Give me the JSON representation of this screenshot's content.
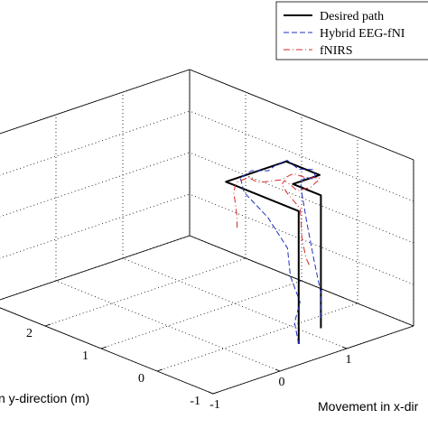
{
  "chart_data": {
    "type": "line",
    "projection": "3d",
    "xlabel": "Movement in x-dir",
    "ylabel": "n y-direction (m)",
    "x_ticks": [
      "-1",
      "0",
      "1"
    ],
    "y_ticks": [
      "-1",
      "0",
      "1",
      "2"
    ],
    "xlim": [
      -1,
      2
    ],
    "ylim": [
      -1,
      3
    ],
    "zlim": [
      0,
      2
    ],
    "grid": true,
    "legend_position": "top-right",
    "series": [
      {
        "name": "Desired path",
        "color": "#000000",
        "style": "solid",
        "x": [
          0.7,
          0.7,
          0.7,
          1.6,
          1.6,
          1.2,
          1.2,
          1.2
        ],
        "y": [
          -0.5,
          -0.5,
          0.8,
          0.8,
          0.2,
          0.2,
          -0.3,
          -0.3
        ],
        "z": [
          0.0,
          1.6,
          1.6,
          1.6,
          1.6,
          1.6,
          1.6,
          0.0
        ]
      },
      {
        "name": "Hybrid EEG-fNI",
        "color": "#1f2fbf",
        "style": "dashed",
        "x": [
          0.7,
          0.68,
          0.72,
          0.66,
          0.7,
          0.74,
          0.72,
          0.9,
          1.1,
          1.3,
          1.45,
          1.6,
          1.58,
          1.62,
          1.55,
          1.5,
          1.4,
          1.3,
          1.25,
          1.2,
          1.18,
          1.22,
          1.2
        ],
        "y": [
          -0.5,
          -0.45,
          -0.5,
          -0.4,
          -0.3,
          0.1,
          0.5,
          0.78,
          0.82,
          0.76,
          0.8,
          0.78,
          0.55,
          0.35,
          0.22,
          0.2,
          0.22,
          0.18,
          0.1,
          -0.05,
          -0.2,
          -0.28,
          -0.3
        ],
        "z": [
          0.0,
          0.25,
          0.5,
          0.8,
          1.1,
          1.35,
          1.55,
          1.6,
          1.62,
          1.58,
          1.6,
          1.62,
          1.58,
          1.62,
          1.6,
          1.58,
          1.62,
          1.6,
          1.5,
          1.2,
          0.8,
          0.4,
          0.1
        ]
      },
      {
        "name": "fNIRS",
        "color": "#d62a2a",
        "style": "dashdot",
        "x": [
          0.7,
          0.78,
          0.72,
          0.8,
          0.85,
          1.0,
          1.05,
          1.2,
          1.35,
          1.5,
          1.6,
          1.68,
          1.6,
          1.45,
          1.3,
          1.25,
          1.2,
          1.1,
          1.05,
          1.1,
          1.0,
          0.98,
          1.0
        ],
        "y": [
          0.6,
          0.7,
          0.65,
          0.78,
          0.8,
          0.72,
          0.78,
          0.82,
          0.6,
          0.55,
          0.45,
          0.3,
          0.2,
          0.18,
          0.24,
          0.3,
          0.35,
          0.28,
          0.12,
          -0.05,
          -0.2,
          -0.3,
          -0.35
        ],
        "z": [
          1.1,
          1.2,
          1.35,
          1.45,
          1.55,
          1.6,
          1.55,
          1.45,
          1.5,
          1.55,
          1.5,
          1.52,
          1.55,
          1.5,
          1.48,
          1.55,
          1.6,
          1.6,
          1.55,
          1.4,
          1.1,
          0.9,
          0.8
        ]
      }
    ]
  }
}
